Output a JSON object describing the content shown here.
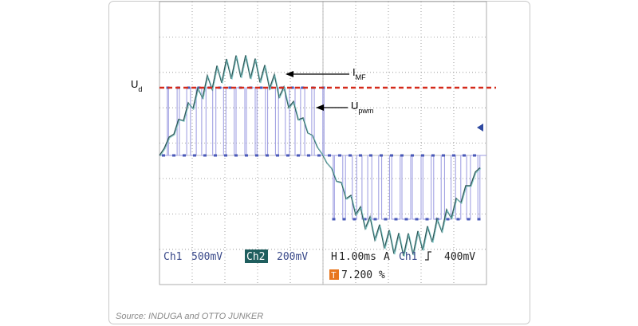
{
  "annotations": {
    "ud": {
      "main": "U",
      "sub": "d"
    },
    "imf": {
      "main": "I",
      "sub": "MF"
    },
    "upwm": {
      "main": "U",
      "sub": "pwm"
    }
  },
  "readout": {
    "ch1": "Ch1",
    "ch1_scale": "500mV",
    "ch2": "Ch2",
    "ch2_scale": "200mV",
    "horizontal": "H",
    "timebase": "1.00ms",
    "trigger_mark": "A",
    "trigger_channel": "Ch1",
    "trigger_level": "400mV",
    "trigger_position_mark": "T",
    "trigger_position": "7.200 %"
  },
  "source": "Source: INDUGA and OTTO JUNKER"
}
